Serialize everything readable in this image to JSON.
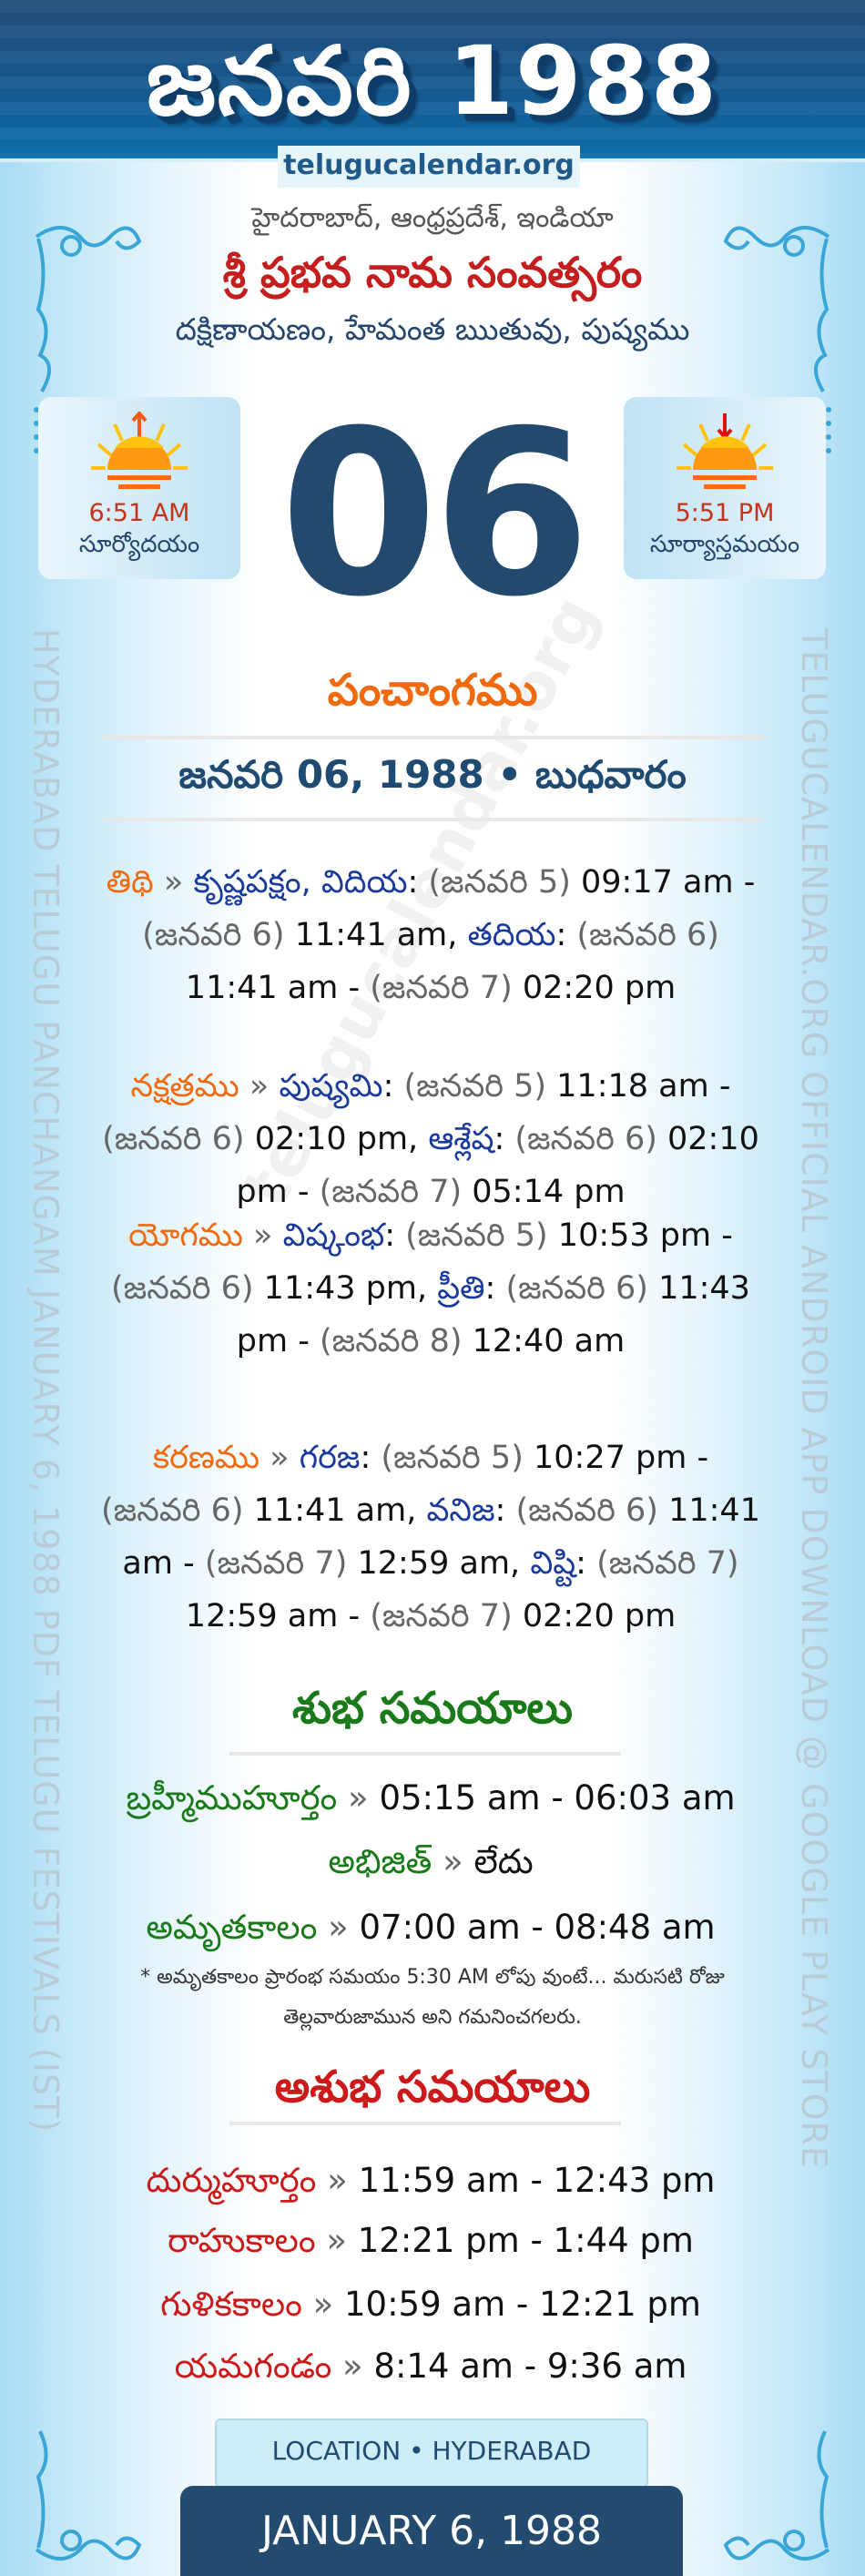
{
  "header": {
    "title": "జనవరి 1988",
    "site": "telugucalendar.org"
  },
  "location_line": "హైదరాబాద్, ఆంధ్రప్రదేశ్, ఇండియా",
  "samvatsaram": "శ్రీ ప్రభవ నామ సంవత్సరం",
  "ayanam": "దక్షిణాయణం, హేమంత ఋతువు, పుష్యము",
  "sunrise": {
    "time": "6:51 AM",
    "label": "సూర్యోదయం",
    "icon": "sunrise-icon"
  },
  "sunset": {
    "time": "5:51 PM",
    "label": "సూర్యాస్తమయం",
    "icon": "sunset-icon"
  },
  "day_number": "06",
  "panchangam": {
    "heading": "పంచాంగము",
    "date_line": "జనవరి 06, 1988 • బుధవారం",
    "sep": "»",
    "items": [
      {
        "label": "తిథి",
        "entries": [
          {
            "name": "కృష్ణపక్షం, విదియ",
            "start_date": "(జనవరి 5)",
            "start_time": "09:17 am",
            "end_date": "(జనవరి 6)",
            "end_time": "11:41 am"
          },
          {
            "name": "తదియ",
            "start_date": "(జనవరి 6)",
            "start_time": "11:41 am",
            "end_date": "(జనవరి 7)",
            "end_time": "02:20 pm"
          }
        ]
      },
      {
        "label": "నక్షత్రము",
        "entries": [
          {
            "name": "పుష్యమి",
            "start_date": "(జనవరి 5)",
            "start_time": "11:18 am",
            "end_date": "(జనవరి 6)",
            "end_time": "02:10 pm"
          },
          {
            "name": "ఆశ్లేష",
            "start_date": "(జనవరి 6)",
            "start_time": "02:10 pm",
            "end_date": "(జనవరి 7)",
            "end_time": "05:14 pm"
          }
        ]
      },
      {
        "label": "యోగము",
        "entries": [
          {
            "name": "విష్కంభ",
            "start_date": "(జనవరి 5)",
            "start_time": "10:53 pm",
            "end_date": "(జనవరి 6)",
            "end_time": "11:43 pm"
          },
          {
            "name": "ప్రీతి",
            "start_date": "(జనవరి 6)",
            "start_time": "11:43 pm",
            "end_date": "(జనవరి 8)",
            "end_time": "12:40 am"
          }
        ]
      },
      {
        "label": "కరణము",
        "entries": [
          {
            "name": "గరజ",
            "start_date": "(జనవరి 5)",
            "start_time": "10:27 pm",
            "end_date": "(జనవరి 6)",
            "end_time": "11:41 am"
          },
          {
            "name": "వనిజ",
            "start_date": "(జనవరి 6)",
            "start_time": "11:41 am",
            "end_date": "(జనవరి 7)",
            "end_time": "12:59 am"
          },
          {
            "name": "విష్టి",
            "start_date": "(జనవరి 7)",
            "start_time": "12:59 am",
            "end_date": "(జనవరి 7)",
            "end_time": "02:20 pm"
          }
        ]
      }
    ]
  },
  "shubha": {
    "heading": "శుభ సమయాలు",
    "items": [
      {
        "label": "బ్రహ్మీముహూర్తం",
        "value": "05:15 am - 06:03 am"
      },
      {
        "label": "అభిజిత్",
        "value": "లేదు"
      },
      {
        "label": "అమృతకాలం",
        "value": "07:00 am - 08:48 am"
      }
    ],
    "note": "* అమృతకాలం ప్రారంభ సమయం 5:30 AM లోపు వుంటే... మరుసటి రోజు తెల్లవారుజామున అని గమనించగలరు."
  },
  "ashubha": {
    "heading": "అశుభ సమయాలు",
    "items": [
      {
        "label": "దుర్ముహూర్తం",
        "value": "11:59 am - 12:43 pm"
      },
      {
        "label": "రాహుకాలం",
        "value": "12:21 pm - 1:44 pm"
      },
      {
        "label": "గుళికకాలం",
        "value": "10:59 am - 12:21 pm"
      },
      {
        "label": "యమగండం",
        "value": "8:14 am - 9:36 am"
      }
    ]
  },
  "side_left": "HYDERABAD TELUGU PANCHANGAM JANUARY 6, 1988 PDF TELUGU FESTIVALS (IST)",
  "side_right": "TELUGUCALENDAR.ORG OFFICIAL ANDROID APP DOWNLOAD @ GOOGLE PLAY STORE",
  "watermark": "telugucalendar.org",
  "footer": {
    "location": "LOCATION • HYDERABAD",
    "date": "JANUARY 6, 1988"
  },
  "colors": {
    "header": "#1a5a90",
    "label": "#f26a10",
    "name": "#1a3a9a",
    "shubha": "#1a7a1a",
    "ashubha": "#cc1a1a",
    "day": "#23496f"
  }
}
